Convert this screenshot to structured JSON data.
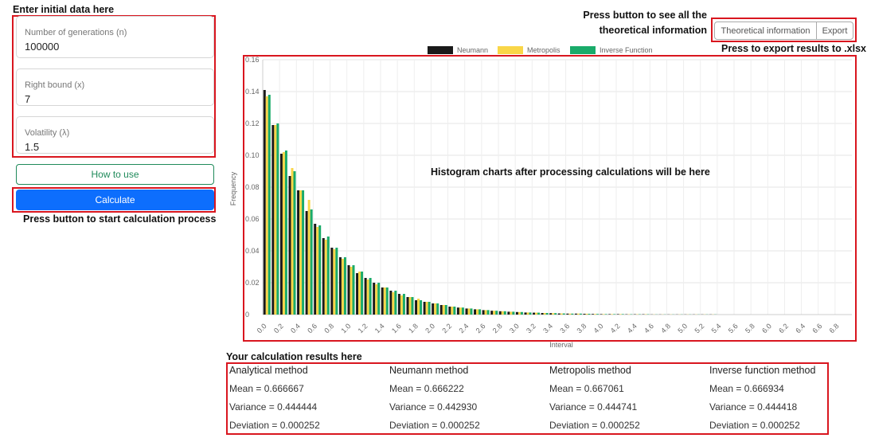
{
  "annotations": {
    "input": "Enter initial data here",
    "calculate": "Press button to start calculation process",
    "theory_line1": "Press button to see all the",
    "theory_line2": "theoretical information",
    "export": "Press to export results to .xlsx",
    "chart": "Histogram charts after processing calculations will be here",
    "results": "Your calculation results here"
  },
  "form": {
    "fields": [
      {
        "label": "Number of generations (n)",
        "value": "100000"
      },
      {
        "label": "Right bound (x)",
        "value": "7"
      },
      {
        "label": "Volatility (λ)",
        "value": "1.5"
      }
    ],
    "help_button": "How to use",
    "calculate_button": "Calculate"
  },
  "toolbar": {
    "theory_button": "Theoretical information",
    "export_button": "Export"
  },
  "chart_data": {
    "type": "bar",
    "x_label": "Interval",
    "y_label": "Frequency",
    "categories": [
      "0.0",
      null,
      "0.2",
      null,
      "0.4",
      null,
      "0.6",
      null,
      "0.8",
      null,
      "1.0",
      null,
      "1.2",
      null,
      "1.4",
      null,
      "1.6",
      null,
      "1.8",
      null,
      "2.0",
      null,
      "2.2",
      null,
      "2.4",
      null,
      "2.6",
      null,
      "2.8",
      null,
      "3.0",
      null,
      "3.2",
      null,
      "3.4",
      null,
      "3.6",
      null,
      "3.8",
      null,
      "4.0",
      null,
      "4.2",
      null,
      "4.4",
      null,
      "4.6",
      null,
      "4.8",
      null,
      "5.0",
      null,
      "5.2",
      null,
      "5.4",
      null,
      "5.6",
      null,
      "5.8",
      null,
      "6.0",
      null,
      "6.2",
      null,
      "6.4",
      null,
      "6.6",
      null,
      "6.8",
      null
    ],
    "series": [
      {
        "name": "Neumann",
        "color": "#1a1a1a",
        "values": [
          0.141,
          0.119,
          0.101,
          0.087,
          0.078,
          0.065,
          0.057,
          0.048,
          0.042,
          0.036,
          0.031,
          0.026,
          0.023,
          0.02,
          0.017,
          0.015,
          0.013,
          0.011,
          0.009,
          0.008,
          0.007,
          0.006,
          0.005,
          0.0044,
          0.0038,
          0.0033,
          0.0028,
          0.0024,
          0.0021,
          0.0018,
          0.0016,
          0.0013,
          0.0012,
          0.001,
          0.0009,
          0.0007,
          0.0006,
          0.0006,
          0.0005,
          0.0004,
          0.0003,
          0.0003,
          0.0003,
          0.0002,
          0.0002,
          0.0002,
          0.0001,
          0.0001,
          0.0001,
          0.0001,
          0.0001,
          0.0001,
          0.0001,
          0.0001,
          0,
          0,
          0,
          0,
          0,
          0,
          0,
          0,
          0,
          0,
          0,
          0,
          0,
          0,
          0,
          0
        ]
      },
      {
        "name": "Metropolis",
        "color": "#f9d648",
        "values": [
          0.137,
          0.119,
          0.102,
          0.092,
          0.078,
          0.072,
          0.055,
          0.047,
          0.041,
          0.035,
          0.03,
          0.027,
          0.022,
          0.019,
          0.017,
          0.014,
          0.012,
          0.011,
          0.01,
          0.008,
          0.007,
          0.006,
          0.005,
          0.0044,
          0.0038,
          0.0033,
          0.0028,
          0.0024,
          0.0021,
          0.0018,
          0.0016,
          0.0013,
          0.0012,
          0.001,
          0.0009,
          0.0007,
          0.0006,
          0.0006,
          0.0005,
          0.0004,
          0.0003,
          0.0003,
          0.0003,
          0.0002,
          0.0002,
          0.0002,
          0.0001,
          0.0001,
          0.0001,
          0.0001,
          0.0001,
          0.0001,
          0.0001,
          0.0001,
          0,
          0,
          0,
          0,
          0,
          0,
          0,
          0,
          0,
          0,
          0,
          0,
          0,
          0,
          0,
          0
        ]
      },
      {
        "name": "Inverse Function",
        "color": "#1aab6a",
        "values": [
          0.138,
          0.12,
          0.103,
          0.09,
          0.078,
          0.066,
          0.056,
          0.049,
          0.042,
          0.036,
          0.031,
          0.027,
          0.023,
          0.02,
          0.017,
          0.015,
          0.013,
          0.011,
          0.009,
          0.008,
          0.007,
          0.006,
          0.005,
          0.0044,
          0.0038,
          0.0033,
          0.0028,
          0.0024,
          0.0021,
          0.0018,
          0.0016,
          0.0013,
          0.0012,
          0.001,
          0.0009,
          0.0007,
          0.0006,
          0.0006,
          0.0005,
          0.0004,
          0.0003,
          0.0003,
          0.0003,
          0.0002,
          0.0002,
          0.0002,
          0.0001,
          0.0001,
          0.0001,
          0.0001,
          0.0001,
          0.0001,
          0.0001,
          0.0001,
          0,
          0,
          0,
          0,
          0,
          0,
          0,
          0,
          0,
          0,
          0,
          0,
          0,
          0,
          0,
          0
        ]
      }
    ],
    "ylim": [
      0,
      0.16
    ],
    "yticks": [
      0,
      0.02,
      0.04,
      0.06,
      0.08,
      {
        "value": 0.1,
        "label": "0.10"
      },
      0.12,
      0.14,
      0.16
    ],
    "grid": true,
    "legend": "top"
  },
  "results": {
    "columns": [
      {
        "title": "Analytical method",
        "rows": [
          "Mean = 0.666667",
          "Variance = 0.444444",
          "Deviation = 0.000252"
        ]
      },
      {
        "title": "Neumann method",
        "rows": [
          "Mean = 0.666222",
          "Variance = 0.442930",
          "Deviation = 0.000252"
        ]
      },
      {
        "title": "Metropolis method",
        "rows": [
          "Mean = 0.667061",
          "Variance = 0.444741",
          "Deviation = 0.000252"
        ]
      },
      {
        "title": "Inverse function method",
        "rows": [
          "Mean = 0.666934",
          "Variance = 0.444418",
          "Deviation = 0.000252"
        ]
      }
    ]
  }
}
